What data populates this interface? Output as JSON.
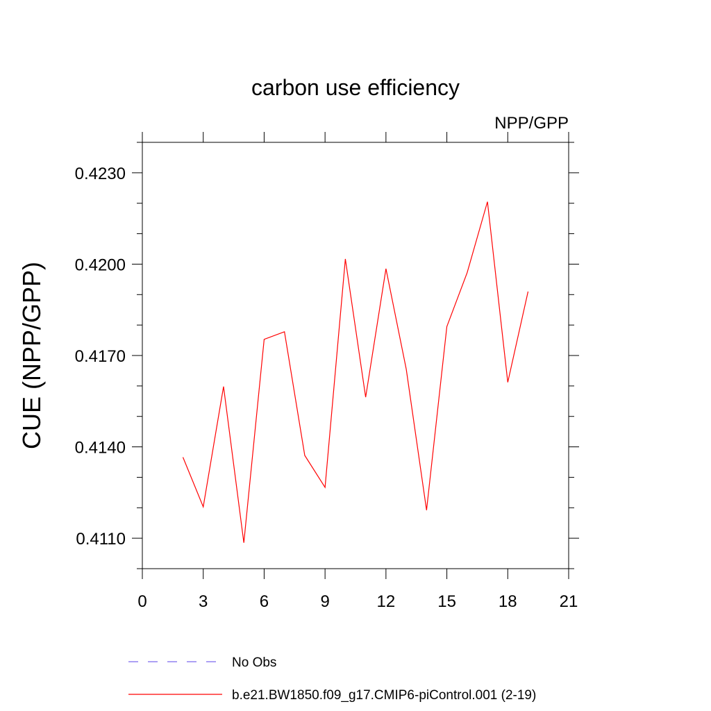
{
  "chart_data": {
    "type": "line",
    "title": "carbon use efficiency",
    "subtitle": "NPP/GPP",
    "ylabel": "CUE  (NPP/GPP)",
    "xlabel": "",
    "xlim": [
      0,
      21
    ],
    "ylim": [
      0.41,
      0.424
    ],
    "x_ticks": [
      0,
      3,
      6,
      9,
      12,
      15,
      18,
      21
    ],
    "x_minor_ticks": [],
    "y_ticks": [
      0.411,
      0.414,
      0.417,
      0.42,
      0.423
    ],
    "y_tick_labels": [
      "0.4110",
      "0.4140",
      "0.4170",
      "0.4200",
      "0.4230"
    ],
    "y_minor_ticks": [
      0.41,
      0.412,
      0.413,
      0.415,
      0.416,
      0.418,
      0.419,
      0.421,
      0.422,
      0.424
    ],
    "grid": false,
    "legend_position": "bottom",
    "series": [
      {
        "name": "b.e21.BW1850.f09_g17.CMIP6-piControl.001 (2-19)",
        "color": "#ff0000",
        "style": "solid",
        "x": [
          2,
          3,
          4,
          5,
          6,
          7,
          8,
          9,
          10,
          11,
          12,
          13,
          14,
          15,
          16,
          17,
          18,
          19
        ],
        "y": [
          0.41366,
          0.41203,
          0.41598,
          0.41085,
          0.41753,
          0.41778,
          0.41372,
          0.41267,
          0.42017,
          0.41563,
          0.41985,
          0.41655,
          0.41192,
          0.41795,
          0.41972,
          0.42205,
          0.41612,
          0.4191
        ]
      },
      {
        "name": "No Obs",
        "color": "#7b68ee",
        "style": "dashed",
        "x": [],
        "y": []
      }
    ]
  }
}
